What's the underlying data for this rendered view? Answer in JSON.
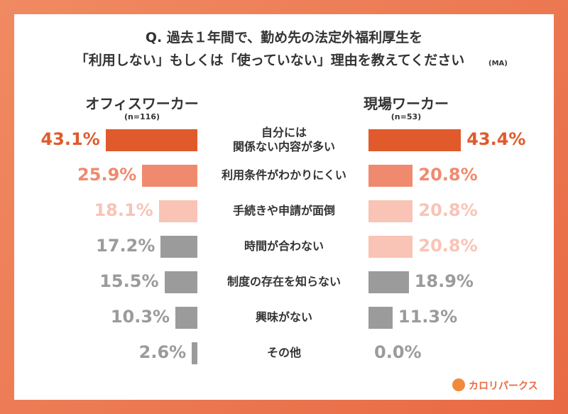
{
  "chart_data": {
    "type": "butterfly-bar",
    "title": [
      "Q. 過去１年間で、勤め先の法定外福利厚生を",
      "「利用しない」もしくは「使っていない」理由を教えてください"
    ],
    "title_note": "(MA)",
    "categories": [
      "自分には\n関係ない内容が多い",
      "利用条件がわかりにくい",
      "手続きや申請が面倒",
      "時間が合わない",
      "制度の存在を知らない",
      "興味がない",
      "その他"
    ],
    "series": [
      {
        "name": "オフィスワーカー",
        "note": "(n=116)",
        "values": [
          43.1,
          25.9,
          18.1,
          17.2,
          15.5,
          10.3,
          2.6
        ],
        "value_labels": [
          "43.1%",
          "25.9%",
          "18.1%",
          "17.2%",
          "15.5%",
          "10.3%",
          "2.6%"
        ],
        "colors": [
          "#e05a2b",
          "#f08a6e",
          "#f9c3b6",
          "#9b9b9b",
          "#9b9b9b",
          "#9b9b9b",
          "#9b9b9b"
        ]
      },
      {
        "name": "現場ワーカー",
        "note": "(n=53)",
        "values": [
          43.4,
          20.8,
          20.8,
          20.8,
          18.9,
          11.3,
          0.0
        ],
        "value_labels": [
          "43.4%",
          "20.8%",
          "20.8%",
          "20.8%",
          "18.9%",
          "11.3%",
          "0.0%"
        ],
        "colors": [
          "#e05a2b",
          "#f08a6e",
          "#f9c3b6",
          "#f9c3b6",
          "#9b9b9b",
          "#9b9b9b",
          "#9b9b9b"
        ]
      }
    ],
    "brand": "カロリパークス"
  }
}
